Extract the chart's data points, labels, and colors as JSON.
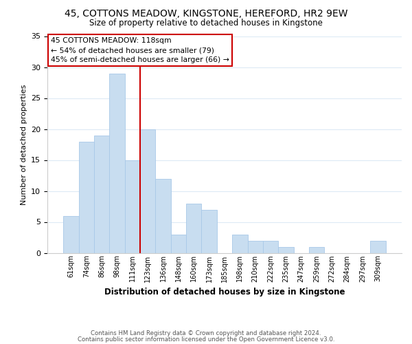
{
  "title": "45, COTTONS MEADOW, KINGSTONE, HEREFORD, HR2 9EW",
  "subtitle": "Size of property relative to detached houses in Kingstone",
  "xlabel": "Distribution of detached houses by size in Kingstone",
  "ylabel": "Number of detached properties",
  "bin_labels": [
    "61sqm",
    "74sqm",
    "86sqm",
    "98sqm",
    "111sqm",
    "123sqm",
    "136sqm",
    "148sqm",
    "160sqm",
    "173sqm",
    "185sqm",
    "198sqm",
    "210sqm",
    "222sqm",
    "235sqm",
    "247sqm",
    "259sqm",
    "272sqm",
    "284sqm",
    "297sqm",
    "309sqm"
  ],
  "bar_values": [
    6,
    18,
    19,
    29,
    15,
    20,
    12,
    3,
    8,
    7,
    0,
    3,
    2,
    2,
    1,
    0,
    1,
    0,
    0,
    0,
    2
  ],
  "bar_color": "#c8ddf0",
  "bar_edge_color": "#a8c8e8",
  "property_line_x": 4.5,
  "property_line_color": "#cc0000",
  "ylim": [
    0,
    35
  ],
  "yticks": [
    0,
    5,
    10,
    15,
    20,
    25,
    30,
    35
  ],
  "annotation_title": "45 COTTONS MEADOW: 118sqm",
  "annotation_line1": "← 54% of detached houses are smaller (79)",
  "annotation_line2": "45% of semi-detached houses are larger (66) →",
  "annotation_box_color": "#ffffff",
  "annotation_box_edge": "#cc0000",
  "footer_line1": "Contains HM Land Registry data © Crown copyright and database right 2024.",
  "footer_line2": "Contains public sector information licensed under the Open Government Licence v3.0.",
  "background_color": "#ffffff",
  "grid_color": "#ddeaf5"
}
